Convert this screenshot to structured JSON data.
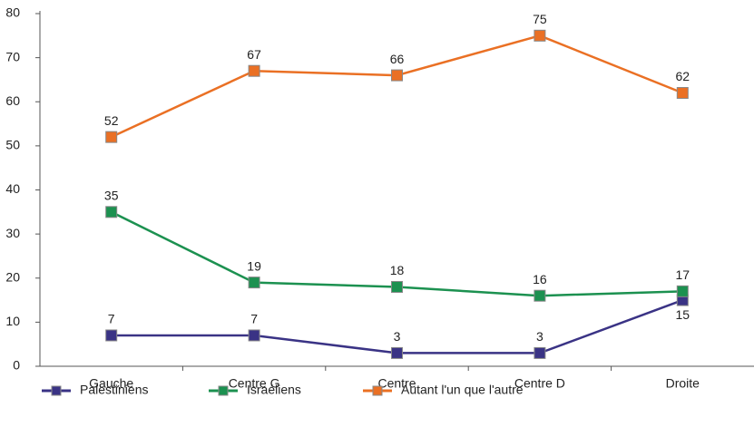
{
  "chart_data": {
    "type": "line",
    "categories": [
      "Gauche",
      "Centre G",
      "Centre",
      "Centre D",
      "Droite"
    ],
    "series": [
      {
        "name": "Palestiniens",
        "color": "#3a3385",
        "values": [
          7,
          7,
          3,
          3,
          15
        ]
      },
      {
        "name": "Israéliens",
        "color": "#1c9150",
        "values": [
          35,
          19,
          18,
          16,
          17
        ]
      },
      {
        "name": "Autant l'un que l'autre",
        "color": "#ea7024",
        "values": [
          52,
          67,
          66,
          75,
          62
        ]
      }
    ],
    "ylim": [
      0,
      80
    ],
    "yticks": [
      0,
      10,
      20,
      30,
      40,
      50,
      60,
      70,
      80
    ],
    "grid": false,
    "legend": "bottom"
  }
}
